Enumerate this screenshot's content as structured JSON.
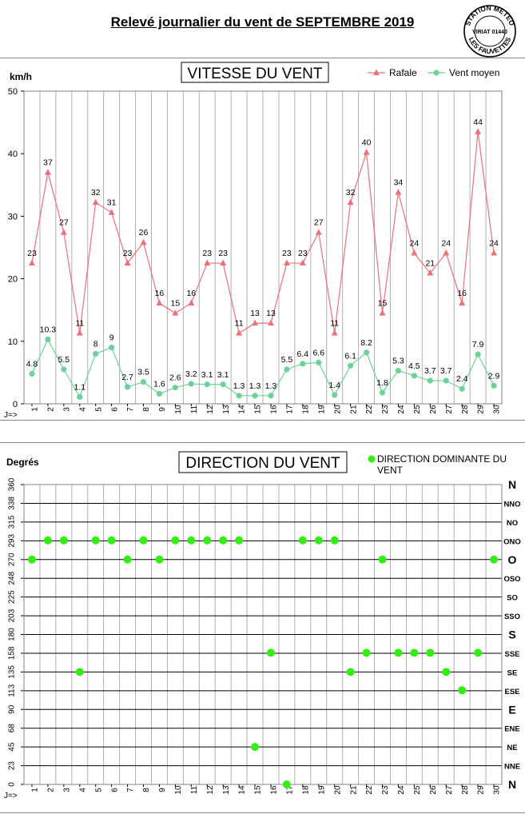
{
  "header": {
    "title": "Relevé journalier du vent de SEPTEMBRE 2019",
    "stamp_top": "STATION METEO",
    "stamp_middle": "VIRIAT 01440",
    "stamp_bottom": "LES FAUVETTES"
  },
  "chart_data": [
    {
      "type": "line",
      "title": "VITESSE DU VENT",
      "ylabel": "km/h",
      "xlabel": "J=>",
      "ylim": [
        0,
        50
      ],
      "yticks": [
        0,
        10,
        20,
        30,
        40,
        50
      ],
      "x": [
        1,
        2,
        3,
        4,
        5,
        6,
        7,
        8,
        9,
        10,
        11,
        12,
        13,
        14,
        15,
        16,
        17,
        18,
        19,
        20,
        21,
        22,
        23,
        24,
        25,
        26,
        27,
        28,
        29,
        30
      ],
      "legend_position": "top-right",
      "grid": "vertical",
      "series": [
        {
          "name": "Rafale",
          "color": "#e8737a",
          "marker": "triangle",
          "values": [
            22.5,
            37,
            27.4,
            11.3,
            32.2,
            30.6,
            22.5,
            25.8,
            16.1,
            14.5,
            16.1,
            22.5,
            22.5,
            11.3,
            12.9,
            12.9,
            22.5,
            22.5,
            27.4,
            11.3,
            32.2,
            40.2,
            14.5,
            33.8,
            24.1,
            20.9,
            24.1,
            16.1,
            43.5,
            24.1
          ],
          "labels": [
            "23",
            "37",
            "27",
            "11",
            "32",
            "31",
            "23",
            "26",
            "16",
            "15",
            "16",
            "23",
            "23",
            "11",
            "13",
            "13",
            "23",
            "23",
            "27",
            "11",
            "32",
            "40",
            "15",
            "34",
            "24",
            "21",
            "24",
            "16",
            "44",
            "24"
          ]
        },
        {
          "name": "Vent moyen",
          "color": "#6fd09a",
          "marker": "circle",
          "values": [
            4.8,
            10.3,
            5.5,
            1.1,
            8,
            9,
            2.7,
            3.5,
            1.6,
            2.6,
            3.2,
            3.1,
            3.1,
            1.3,
            1.3,
            1.3,
            5.5,
            6.4,
            6.6,
            1.4,
            6.1,
            8.2,
            1.8,
            5.3,
            4.5,
            3.7,
            3.7,
            2.4,
            7.9,
            2.9
          ],
          "labels": [
            "4.8",
            "10.3",
            "5.5",
            "1.1",
            "8",
            "9",
            "2.7",
            "3.5",
            "1.6",
            "2.6",
            "3.2",
            "3.1",
            "3.1",
            "1.3",
            "1.3",
            "1.3",
            "5.5",
            "6.4",
            "6.6",
            "1.4",
            "6.1",
            "8.2",
            "1.8",
            "5.3",
            "4.5",
            "3.7",
            "3.7",
            "2.4",
            "7.9",
            "2.9"
          ]
        }
      ]
    },
    {
      "type": "scatter",
      "title": "DIRECTION DU VENT",
      "ylabel": "Degrés",
      "xlabel": "J=>",
      "ylim": [
        0,
        360
      ],
      "yticks": [
        0,
        23,
        45,
        68,
        90,
        113,
        135,
        158,
        180,
        203,
        225,
        248,
        270,
        293,
        315,
        338,
        360
      ],
      "compass_labels": [
        "N",
        "NNE",
        "NE",
        "ENE",
        "E",
        "ESE",
        "SE",
        "SSE",
        "S",
        "SSO",
        "SO",
        "OSO",
        "O",
        "ONO",
        "NO",
        "NNO",
        "N"
      ],
      "x": [
        1,
        2,
        3,
        4,
        5,
        6,
        7,
        8,
        9,
        10,
        11,
        12,
        13,
        14,
        15,
        16,
        17,
        18,
        19,
        20,
        21,
        22,
        23,
        24,
        25,
        26,
        27,
        28,
        29,
        30
      ],
      "legend_position": "top-right",
      "grid": "both",
      "series": [
        {
          "name": "DIRECTION DOMINANTE DU VENT",
          "color": "#33ee11",
          "marker": "circle",
          "values": [
            270,
            293,
            293,
            135,
            293,
            293,
            270,
            293,
            270,
            293,
            293,
            293,
            293,
            293,
            45,
            158,
            0,
            293,
            293,
            293,
            135,
            158,
            270,
            158,
            158,
            158,
            135,
            113,
            158,
            270
          ]
        }
      ]
    }
  ]
}
